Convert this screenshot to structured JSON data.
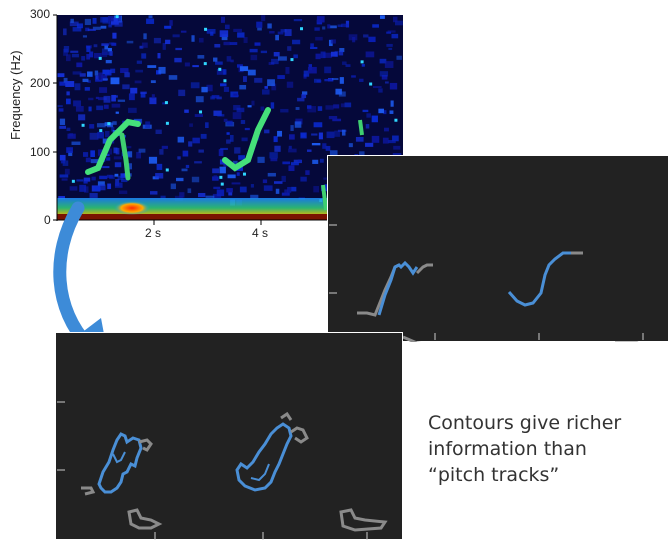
{
  "spectrogram": {
    "ylabel": "Frequency (Hz)",
    "y_ticks": [
      "300",
      "200",
      "100",
      "0"
    ],
    "x_ticks": [
      "2 s",
      "4 s"
    ]
  },
  "caption": {
    "line1": "Contours give richer",
    "line2": "information than",
    "line3": "“pitch tracks”"
  },
  "colors": {
    "panel_bg": "#222222",
    "contour_blue": "#4a8fd6",
    "contour_gray": "#8a8a8a",
    "arrow_blue": "#3d8bd8",
    "spectro_bg": "#050a40"
  }
}
